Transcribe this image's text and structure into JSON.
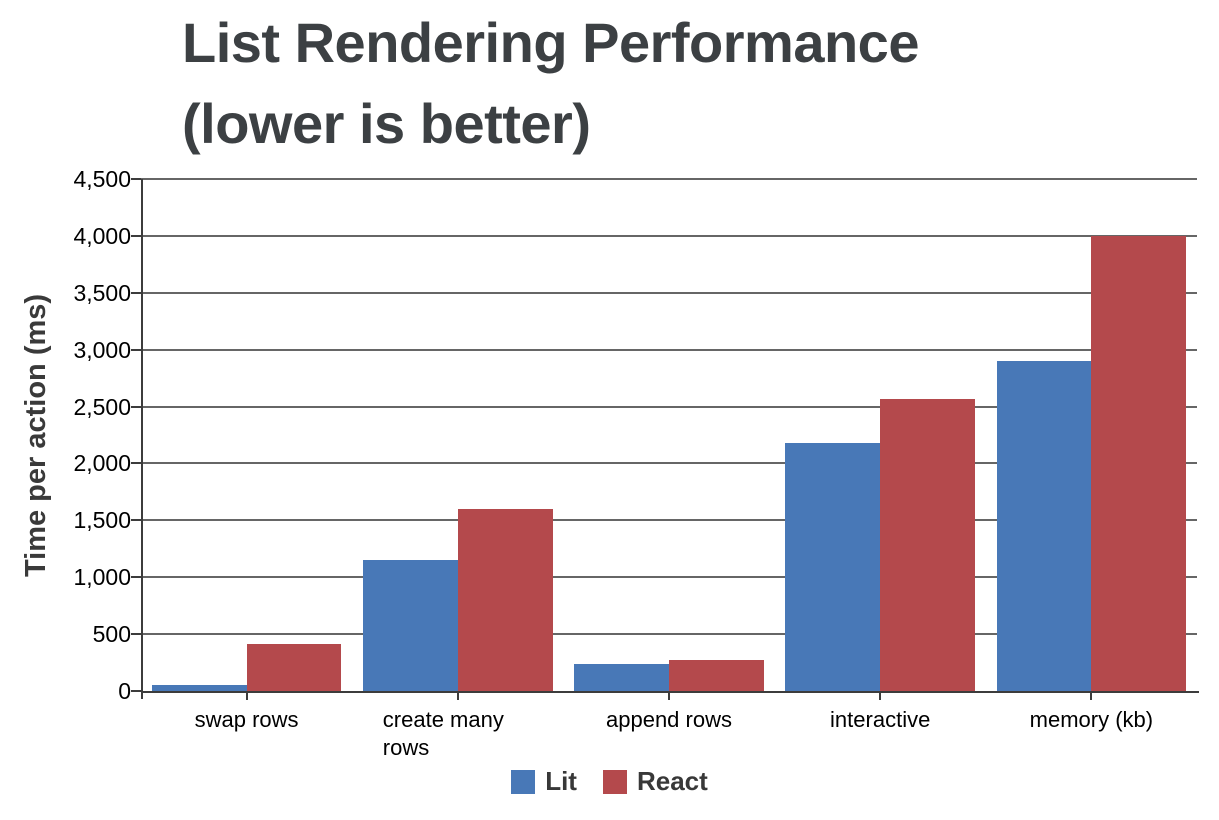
{
  "chart_data": {
    "type": "bar",
    "title": "List Rendering Performance (lower is better)",
    "title_lines": [
      "List Rendering Performance",
      "(lower is better)"
    ],
    "ylabel": "Time per action (ms)",
    "xlabel": "",
    "categories": [
      "swap rows",
      "create many rows",
      "append rows",
      "interactive",
      "memory (kb)"
    ],
    "series": [
      {
        "name": "Lit",
        "color": "#4878B7",
        "values": [
          50,
          1150,
          240,
          2180,
          2900
        ]
      },
      {
        "name": "React",
        "color": "#B4494C",
        "values": [
          410,
          1600,
          275,
          2570,
          4000
        ]
      }
    ],
    "ylim": [
      0,
      4500
    ],
    "ytick_step": 500,
    "ytick_labels": [
      "0",
      "500",
      "1,000",
      "1,500",
      "2,000",
      "2,500",
      "3,000",
      "3,500",
      "4,000",
      "4,500"
    ],
    "grid": true,
    "legend_position": "bottom",
    "colors": {
      "title_text": "#3c4043",
      "tick_text": "#000000",
      "axis": "#3c3c3c",
      "gridline": "#666666"
    }
  }
}
